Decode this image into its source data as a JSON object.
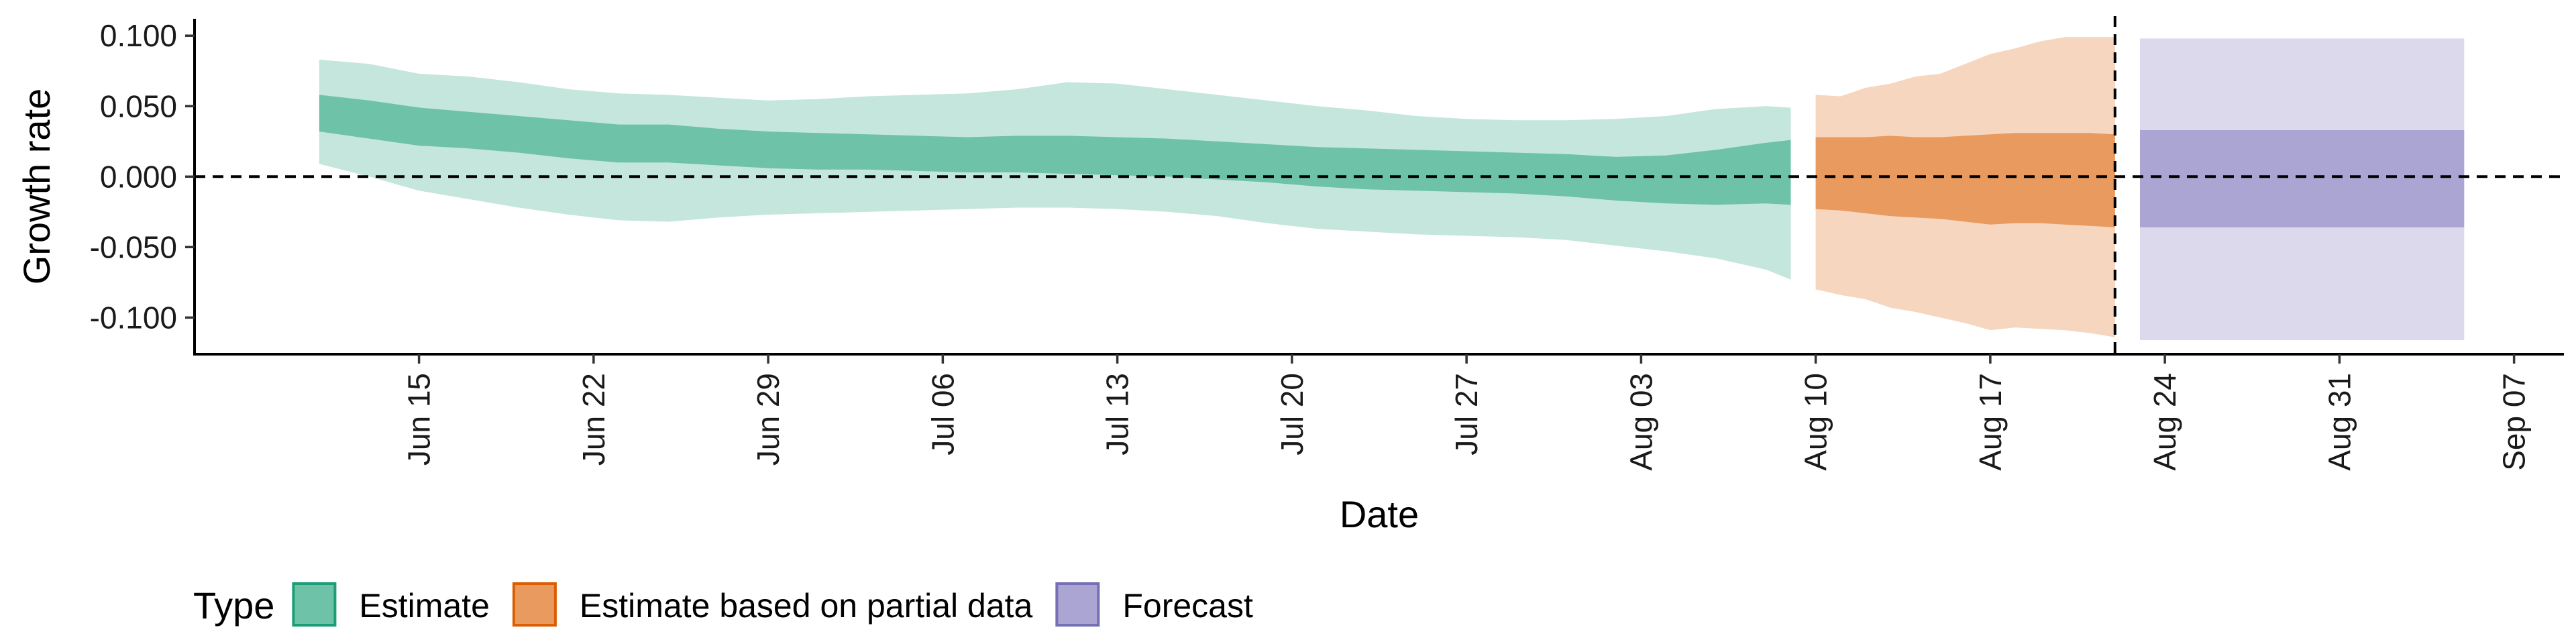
{
  "chart_data": {
    "type": "area",
    "xlabel": "Date",
    "ylabel": "Growth rate",
    "x_type": "date",
    "xlim": [
      "2020-06-06",
      "2020-09-09"
    ],
    "ylim": [
      -0.126,
      0.112
    ],
    "x_ticks": [
      {
        "date": "2020-06-15",
        "label": "Jun 15"
      },
      {
        "date": "2020-06-22",
        "label": "Jun 22"
      },
      {
        "date": "2020-06-29",
        "label": "Jun 29"
      },
      {
        "date": "2020-07-06",
        "label": "Jul 06"
      },
      {
        "date": "2020-07-13",
        "label": "Jul 13"
      },
      {
        "date": "2020-07-20",
        "label": "Jul 20"
      },
      {
        "date": "2020-07-27",
        "label": "Jul 27"
      },
      {
        "date": "2020-08-03",
        "label": "Aug 03"
      },
      {
        "date": "2020-08-10",
        "label": "Aug 10"
      },
      {
        "date": "2020-08-17",
        "label": "Aug 17"
      },
      {
        "date": "2020-08-24",
        "label": "Aug 24"
      },
      {
        "date": "2020-08-31",
        "label": "Aug 31"
      },
      {
        "date": "2020-09-07",
        "label": "Sep 07"
      }
    ],
    "y_ticks": [
      {
        "value": 0.1,
        "label": "0.100"
      },
      {
        "value": 0.05,
        "label": "0.050"
      },
      {
        "value": 0.0,
        "label": "0.000"
      },
      {
        "value": -0.05,
        "label": "-0.050"
      },
      {
        "value": -0.1,
        "label": "-0.100"
      }
    ],
    "hline": 0,
    "vline": "2020-08-22",
    "grid": false,
    "legend": {
      "title": "Type",
      "position": "bottom-left",
      "entries": [
        {
          "label": "Estimate",
          "fill": "#6dc2a8",
          "stroke": "#1b9e77"
        },
        {
          "label": "Estimate based on partial data",
          "fill": "#e99a5e",
          "stroke": "#d95f02"
        },
        {
          "label": "Forecast",
          "fill": "#aaa5d2",
          "stroke": "#7570b3"
        }
      ]
    },
    "series": [
      {
        "name": "Estimate",
        "colors": {
          "inner": "#6dc2a8",
          "outer": "#c4e6dc"
        },
        "points": [
          {
            "date": "2020-06-11",
            "lo90": 0.009,
            "lo50": 0.032,
            "hi50": 0.058,
            "hi90": 0.083
          },
          {
            "date": "2020-06-13",
            "lo90": 0.0,
            "lo50": 0.027,
            "hi50": 0.054,
            "hi90": 0.08
          },
          {
            "date": "2020-06-15",
            "lo90": -0.01,
            "lo50": 0.022,
            "hi50": 0.049,
            "hi90": 0.073
          },
          {
            "date": "2020-06-17",
            "lo90": -0.016,
            "lo50": 0.02,
            "hi50": 0.046,
            "hi90": 0.071
          },
          {
            "date": "2020-06-19",
            "lo90": -0.022,
            "lo50": 0.017,
            "hi50": 0.043,
            "hi90": 0.067
          },
          {
            "date": "2020-06-21",
            "lo90": -0.027,
            "lo50": 0.013,
            "hi50": 0.04,
            "hi90": 0.062
          },
          {
            "date": "2020-06-23",
            "lo90": -0.031,
            "lo50": 0.01,
            "hi50": 0.037,
            "hi90": 0.059
          },
          {
            "date": "2020-06-25",
            "lo90": -0.032,
            "lo50": 0.01,
            "hi50": 0.037,
            "hi90": 0.058
          },
          {
            "date": "2020-06-27",
            "lo90": -0.029,
            "lo50": 0.008,
            "hi50": 0.034,
            "hi90": 0.056
          },
          {
            "date": "2020-06-29",
            "lo90": -0.027,
            "lo50": 0.006,
            "hi50": 0.032,
            "hi90": 0.054
          },
          {
            "date": "2020-07-01",
            "lo90": -0.026,
            "lo50": 0.005,
            "hi50": 0.031,
            "hi90": 0.055
          },
          {
            "date": "2020-07-03",
            "lo90": -0.025,
            "lo50": 0.005,
            "hi50": 0.03,
            "hi90": 0.057
          },
          {
            "date": "2020-07-05",
            "lo90": -0.024,
            "lo50": 0.004,
            "hi50": 0.029,
            "hi90": 0.058
          },
          {
            "date": "2020-07-07",
            "lo90": -0.023,
            "lo50": 0.003,
            "hi50": 0.028,
            "hi90": 0.059
          },
          {
            "date": "2020-07-09",
            "lo90": -0.022,
            "lo50": 0.003,
            "hi50": 0.029,
            "hi90": 0.062
          },
          {
            "date": "2020-07-11",
            "lo90": -0.022,
            "lo50": 0.002,
            "hi50": 0.029,
            "hi90": 0.067
          },
          {
            "date": "2020-07-13",
            "lo90": -0.023,
            "lo50": 0.001,
            "hi50": 0.028,
            "hi90": 0.066
          },
          {
            "date": "2020-07-15",
            "lo90": -0.025,
            "lo50": 0.0,
            "hi50": 0.027,
            "hi90": 0.062
          },
          {
            "date": "2020-07-17",
            "lo90": -0.028,
            "lo50": -0.002,
            "hi50": 0.025,
            "hi90": 0.058
          },
          {
            "date": "2020-07-19",
            "lo90": -0.033,
            "lo50": -0.004,
            "hi50": 0.023,
            "hi90": 0.054
          },
          {
            "date": "2020-07-21",
            "lo90": -0.037,
            "lo50": -0.007,
            "hi50": 0.021,
            "hi90": 0.05
          },
          {
            "date": "2020-07-23",
            "lo90": -0.039,
            "lo50": -0.009,
            "hi50": 0.02,
            "hi90": 0.047
          },
          {
            "date": "2020-07-25",
            "lo90": -0.041,
            "lo50": -0.01,
            "hi50": 0.019,
            "hi90": 0.043
          },
          {
            "date": "2020-07-27",
            "lo90": -0.042,
            "lo50": -0.011,
            "hi50": 0.018,
            "hi90": 0.041
          },
          {
            "date": "2020-07-29",
            "lo90": -0.043,
            "lo50": -0.012,
            "hi50": 0.017,
            "hi90": 0.04
          },
          {
            "date": "2020-07-31",
            "lo90": -0.045,
            "lo50": -0.014,
            "hi50": 0.016,
            "hi90": 0.04
          },
          {
            "date": "2020-08-02",
            "lo90": -0.049,
            "lo50": -0.017,
            "hi50": 0.014,
            "hi90": 0.041
          },
          {
            "date": "2020-08-04",
            "lo90": -0.053,
            "lo50": -0.019,
            "hi50": 0.015,
            "hi90": 0.043
          },
          {
            "date": "2020-08-06",
            "lo90": -0.058,
            "lo50": -0.02,
            "hi50": 0.019,
            "hi90": 0.048
          },
          {
            "date": "2020-08-08",
            "lo90": -0.066,
            "lo50": -0.019,
            "hi50": 0.024,
            "hi90": 0.05
          },
          {
            "date": "2020-08-09",
            "lo90": -0.073,
            "lo50": -0.02,
            "hi50": 0.026,
            "hi90": 0.049
          }
        ]
      },
      {
        "name": "Estimate based on partial data",
        "colors": {
          "inner": "#e99a5e",
          "outer": "#f6d6be"
        },
        "points": [
          {
            "date": "2020-08-10",
            "lo90": -0.08,
            "lo50": -0.023,
            "hi50": 0.028,
            "hi90": 0.058
          },
          {
            "date": "2020-08-11",
            "lo90": -0.084,
            "lo50": -0.024,
            "hi50": 0.028,
            "hi90": 0.057
          },
          {
            "date": "2020-08-12",
            "lo90": -0.087,
            "lo50": -0.026,
            "hi50": 0.028,
            "hi90": 0.063
          },
          {
            "date": "2020-08-13",
            "lo90": -0.093,
            "lo50": -0.028,
            "hi50": 0.029,
            "hi90": 0.066
          },
          {
            "date": "2020-08-14",
            "lo90": -0.096,
            "lo50": -0.029,
            "hi50": 0.028,
            "hi90": 0.071
          },
          {
            "date": "2020-08-15",
            "lo90": -0.1,
            "lo50": -0.03,
            "hi50": 0.028,
            "hi90": 0.073
          },
          {
            "date": "2020-08-16",
            "lo90": -0.104,
            "lo50": -0.032,
            "hi50": 0.029,
            "hi90": 0.08
          },
          {
            "date": "2020-08-17",
            "lo90": -0.109,
            "lo50": -0.034,
            "hi50": 0.03,
            "hi90": 0.087
          },
          {
            "date": "2020-08-18",
            "lo90": -0.107,
            "lo50": -0.033,
            "hi50": 0.031,
            "hi90": 0.091
          },
          {
            "date": "2020-08-19",
            "lo90": -0.108,
            "lo50": -0.033,
            "hi50": 0.031,
            "hi90": 0.096
          },
          {
            "date": "2020-08-20",
            "lo90": -0.109,
            "lo50": -0.034,
            "hi50": 0.031,
            "hi90": 0.099
          },
          {
            "date": "2020-08-21",
            "lo90": -0.111,
            "lo50": -0.035,
            "hi50": 0.031,
            "hi90": 0.099
          },
          {
            "date": "2020-08-22",
            "lo90": -0.114,
            "lo50": -0.036,
            "hi50": 0.03,
            "hi90": 0.099
          }
        ]
      },
      {
        "name": "Forecast",
        "colors": {
          "inner": "#aaa5d2",
          "outer": "#dbd9eb"
        },
        "points": [
          {
            "date": "2020-08-23",
            "lo90": -0.116,
            "lo50": -0.036,
            "hi50": 0.033,
            "hi90": 0.098
          },
          {
            "date": "2020-09-05",
            "lo90": -0.116,
            "lo50": -0.036,
            "hi50": 0.033,
            "hi90": 0.098
          }
        ]
      }
    ]
  }
}
